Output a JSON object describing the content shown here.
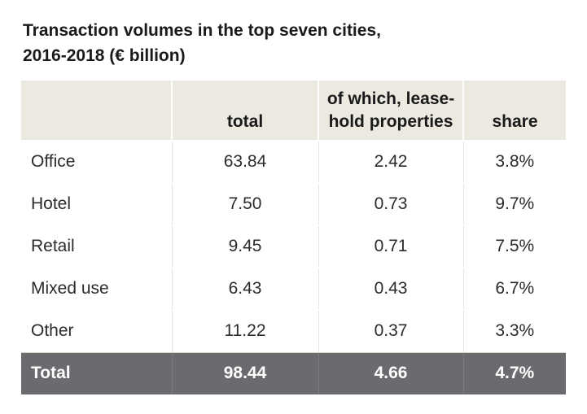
{
  "title_line1": "Transaction volumes in the top seven cities,",
  "title_line2": "2016-2018 (€ billion)",
  "chart_data": {
    "type": "table",
    "headers": {
      "label": "",
      "total": "total",
      "lease_line1": "of which, lease-",
      "lease_line2": "hold properties",
      "share": "share"
    },
    "rows": [
      {
        "label": "Office",
        "total": "63.84",
        "leasehold": "2.42",
        "share": "3.8%"
      },
      {
        "label": "Hotel",
        "total": "7.50",
        "leasehold": "0.73",
        "share": "9.7%"
      },
      {
        "label": "Retail",
        "total": "9.45",
        "leasehold": "0.71",
        "share": "7.5%"
      },
      {
        "label": "Mixed use",
        "total": "6.43",
        "leasehold": "0.43",
        "share": "6.7%"
      },
      {
        "label": "Other",
        "total": "11.22",
        "leasehold": "0.37",
        "share": "3.3%"
      }
    ],
    "total_row": {
      "label": "Total",
      "total": "98.44",
      "leasehold": "4.66",
      "share": "4.7%"
    }
  },
  "colors": {
    "header_bg": "#ece9e1",
    "total_bg": "#6a6b6e",
    "row_divider": "#d9d6cf"
  }
}
